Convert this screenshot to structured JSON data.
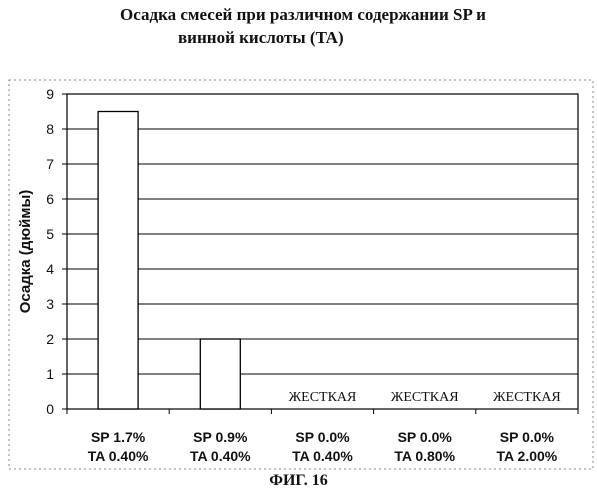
{
  "title": {
    "line1": "Осадка смесей при различном содержании SP и",
    "line2": "винной кислоты (TA)"
  },
  "figure_label": "ФИГ. 16",
  "chart_data": {
    "type": "bar",
    "title": "Осадка смесей при различном содержании SP и винной кислоты (TA)",
    "xlabel": "",
    "ylabel": "Осадка (дюймы)",
    "ylim": [
      0,
      9
    ],
    "yticks": [
      0,
      1,
      2,
      3,
      4,
      5,
      6,
      7,
      8,
      9
    ],
    "grid": true,
    "categories": [
      [
        "SP 1.7%",
        "TA 0.40%"
      ],
      [
        "SP 0.9%",
        "TA 0.40%"
      ],
      [
        "SP 0.0%",
        "TA 0.40%"
      ],
      [
        "SP 0.0%",
        "TA 0.80%"
      ],
      [
        "SP 0.0%",
        "TA 2.00%"
      ]
    ],
    "values": [
      8.5,
      2.0,
      0,
      0,
      0
    ],
    "bar_annotations": [
      "",
      "",
      "ЖЕСТКАЯ",
      "ЖЕСТКАЯ",
      "ЖЕСТКАЯ"
    ],
    "bar_fill": "#ffffff",
    "bar_stroke": "#000000"
  }
}
